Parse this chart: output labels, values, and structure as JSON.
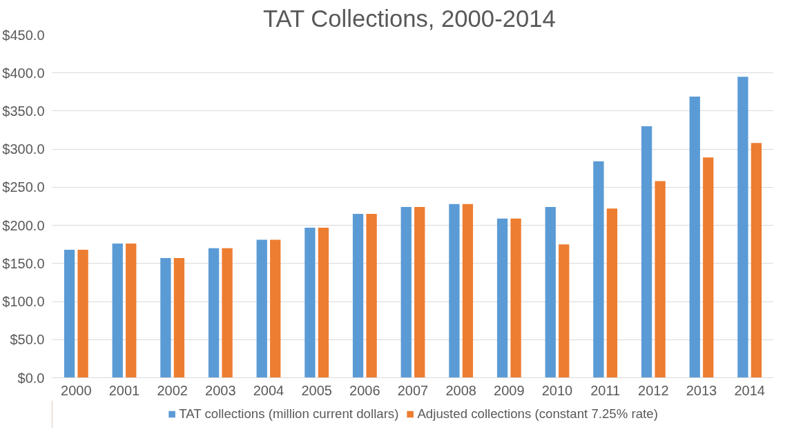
{
  "chart_data": {
    "type": "bar",
    "title": "TAT Collections,  2000-2014",
    "categories": [
      "2000",
      "2001",
      "2002",
      "2003",
      "2004",
      "2005",
      "2006",
      "2007",
      "2008",
      "2009",
      "2010",
      "2011",
      "2012",
      "2013",
      "2014"
    ],
    "series": [
      {
        "name": "TAT collections (million current dollars)",
        "color": "#5b9bd5",
        "values": [
          168,
          176,
          157,
          170,
          181,
          197,
          215,
          224,
          228,
          209,
          224,
          284,
          330,
          369,
          395
        ]
      },
      {
        "name": "Adjusted collections (constant 7.25% rate)",
        "color": "#ed7d31",
        "values": [
          168,
          176,
          157,
          170,
          181,
          197,
          215,
          224,
          228,
          209,
          175,
          222,
          258,
          289,
          308
        ]
      }
    ],
    "ylim": [
      0,
      450
    ],
    "yticks": [
      {
        "value": 0,
        "label": "$0.0"
      },
      {
        "value": 50,
        "label": "$50.0"
      },
      {
        "value": 100,
        "label": "$100.0"
      },
      {
        "value": 150,
        "label": "$150.0"
      },
      {
        "value": 200,
        "label": "$200.0"
      },
      {
        "value": 250,
        "label": "$250.0"
      },
      {
        "value": 300,
        "label": "$300.0"
      },
      {
        "value": 350,
        "label": "$350.0"
      },
      {
        "value": 400,
        "label": "$400.0"
      },
      {
        "value": 450,
        "label": "$450.0"
      }
    ],
    "grid": "y",
    "legend": "bottom"
  }
}
